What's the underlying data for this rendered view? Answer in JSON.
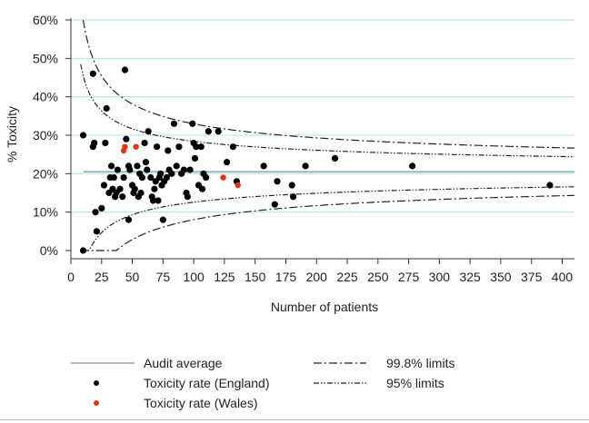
{
  "chart_data": {
    "type": "scatter",
    "title": "",
    "xlabel": "Number of patients",
    "ylabel": "% Toxicity",
    "xlim": [
      0,
      410
    ],
    "ylim": [
      0,
      60
    ],
    "x_ticks": [
      0,
      25,
      50,
      75,
      100,
      125,
      150,
      175,
      200,
      225,
      250,
      275,
      300,
      325,
      350,
      375,
      400
    ],
    "y_ticks": [
      0,
      10,
      20,
      30,
      40,
      50,
      60
    ],
    "y_tick_labels": [
      "0%",
      "10%",
      "20%",
      "30%",
      "40%",
      "50%",
      "60%"
    ],
    "grid": "horizontal",
    "audit_average": 20.5,
    "colors": {
      "england": "#000000",
      "wales": "#d9361c",
      "audit_average": "#8ea8a8",
      "grid": "#aee0ee",
      "limits": "#222222"
    },
    "series": [
      {
        "name": "Toxicity rate (England)",
        "points": [
          [
            10,
            0
          ],
          [
            10,
            30
          ],
          [
            18,
            46
          ],
          [
            18,
            27
          ],
          [
            19,
            28
          ],
          [
            20,
            10
          ],
          [
            21,
            5
          ],
          [
            25,
            11
          ],
          [
            27,
            17
          ],
          [
            28,
            28
          ],
          [
            29,
            37
          ],
          [
            31,
            15
          ],
          [
            32,
            19
          ],
          [
            33,
            22
          ],
          [
            34,
            16
          ],
          [
            35,
            19
          ],
          [
            36,
            14
          ],
          [
            37,
            15
          ],
          [
            38,
            21
          ],
          [
            40,
            16
          ],
          [
            42,
            14
          ],
          [
            43,
            19
          ],
          [
            44,
            47
          ],
          [
            45,
            29
          ],
          [
            47,
            8
          ],
          [
            47,
            22
          ],
          [
            48,
            21
          ],
          [
            50,
            17
          ],
          [
            51,
            15
          ],
          [
            52,
            16
          ],
          [
            54,
            22
          ],
          [
            55,
            14
          ],
          [
            56,
            20
          ],
          [
            57,
            15
          ],
          [
            58,
            19
          ],
          [
            60,
            28
          ],
          [
            61,
            23
          ],
          [
            62,
            21
          ],
          [
            63,
            31
          ],
          [
            65,
            19
          ],
          [
            66,
            14
          ],
          [
            67,
            13
          ],
          [
            68,
            16
          ],
          [
            69,
            18
          ],
          [
            70,
            27
          ],
          [
            71,
            13
          ],
          [
            72,
            19
          ],
          [
            73,
            20
          ],
          [
            74,
            17
          ],
          [
            75,
            8
          ],
          [
            76,
            18
          ],
          [
            78,
            19
          ],
          [
            79,
            26
          ],
          [
            80,
            21
          ],
          [
            82,
            20
          ],
          [
            84,
            33
          ],
          [
            86,
            22
          ],
          [
            88,
            27
          ],
          [
            90,
            20
          ],
          [
            92,
            21
          ],
          [
            94,
            15
          ],
          [
            95,
            14
          ],
          [
            97,
            21
          ],
          [
            99,
            33
          ],
          [
            100,
            28
          ],
          [
            101,
            24
          ],
          [
            102,
            27
          ],
          [
            104,
            17
          ],
          [
            106,
            27
          ],
          [
            107,
            16
          ],
          [
            108,
            20
          ],
          [
            110,
            19
          ],
          [
            112,
            31
          ],
          [
            120,
            31
          ],
          [
            127,
            23
          ],
          [
            132,
            27
          ],
          [
            135,
            18
          ],
          [
            157,
            22
          ],
          [
            166,
            12
          ],
          [
            168,
            18
          ],
          [
            180,
            17
          ],
          [
            181,
            14
          ],
          [
            191,
            22
          ],
          [
            215,
            24
          ],
          [
            278,
            22
          ],
          [
            390,
            17
          ]
        ]
      },
      {
        "name": "Toxicity rate (Wales)",
        "points": [
          [
            43,
            26
          ],
          [
            44,
            27
          ],
          [
            53,
            27
          ],
          [
            124,
            19
          ],
          [
            136,
            17
          ]
        ]
      }
    ],
    "limit_lines": [
      {
        "name": "99.8% limits",
        "style": "dash-dot",
        "z": 3.09
      },
      {
        "name": "95% limits",
        "style": "dash-dot-dot",
        "z": 1.96
      }
    ],
    "legend": {
      "position": "bottom",
      "items": [
        {
          "label": "Audit average",
          "kind": "solid-line"
        },
        {
          "label": "Toxicity rate (England)",
          "kind": "dot-england"
        },
        {
          "label": "Toxicity rate (Wales)",
          "kind": "dot-wales"
        },
        {
          "label": "99.8% limits",
          "kind": "dash-dot"
        },
        {
          "label": "95% limits",
          "kind": "dash-dot-dot"
        }
      ]
    }
  }
}
